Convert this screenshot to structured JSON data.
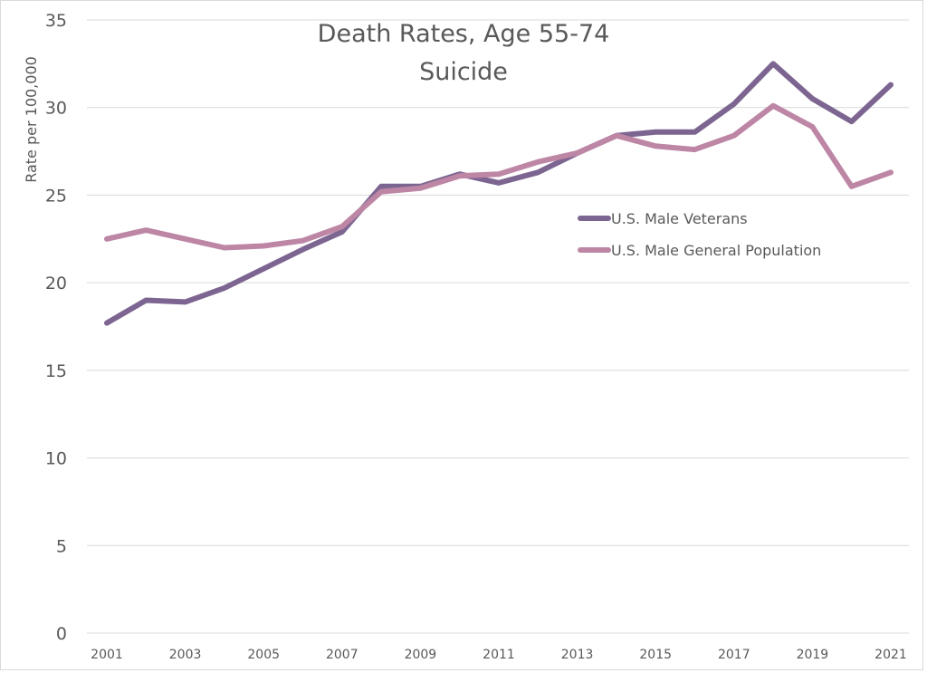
{
  "chart_data": {
    "type": "line",
    "title": "Death Rates, Age 55-74",
    "subtitle": "Suicide",
    "xlabel": "",
    "ylabel": "Rate per 100,000",
    "ylim": [
      0,
      35
    ],
    "yticks": [
      0,
      5,
      10,
      15,
      20,
      25,
      30,
      35
    ],
    "grid": true,
    "legend_position": "center-right",
    "x": [
      2001,
      2002,
      2003,
      2004,
      2005,
      2006,
      2007,
      2008,
      2009,
      2010,
      2011,
      2012,
      2013,
      2014,
      2015,
      2016,
      2017,
      2018,
      2019,
      2020,
      2021
    ],
    "xtick_labels": [
      "2001",
      "2003",
      "2005",
      "2007",
      "2009",
      "2011",
      "2013",
      "2015",
      "2017",
      "2019",
      "2021"
    ],
    "series": [
      {
        "name": "U.S. Male Veterans",
        "color": "#7d6591",
        "values": [
          17.7,
          19.0,
          18.9,
          19.7,
          20.8,
          21.9,
          22.9,
          25.5,
          25.5,
          26.2,
          25.7,
          26.3,
          27.4,
          28.4,
          28.6,
          28.6,
          30.2,
          32.5,
          30.5,
          29.2,
          31.3
        ]
      },
      {
        "name": "U.S. Male General Population",
        "color": "#bd86a5",
        "values": [
          22.5,
          23.0,
          22.5,
          22.0,
          22.1,
          22.4,
          23.2,
          25.2,
          25.4,
          26.1,
          26.2,
          26.9,
          27.4,
          28.4,
          27.8,
          27.6,
          28.4,
          30.1,
          28.9,
          25.5,
          26.3
        ]
      }
    ]
  }
}
